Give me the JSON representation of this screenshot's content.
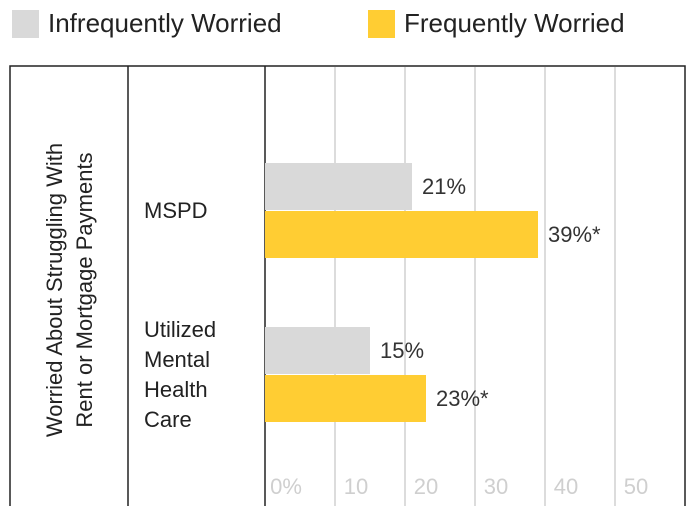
{
  "chart_data": {
    "type": "bar",
    "orientation": "horizontal",
    "y_label": "Worried About Struggling With Rent or Mortgage Payments",
    "categories": [
      "MSPD",
      "Utilized Mental Health Care"
    ],
    "series": [
      {
        "name": "Infrequently Worried",
        "color": "#d9d9d9",
        "values": [
          21,
          15
        ],
        "value_labels": [
          "21%",
          "15%"
        ]
      },
      {
        "name": "Frequently Worried",
        "color": "#ffcd33",
        "values": [
          39,
          23
        ],
        "value_labels": [
          "39%*",
          "23%*"
        ]
      }
    ],
    "xlim": [
      0,
      60
    ],
    "xticks": [
      {
        "value": 0,
        "label": "0%"
      },
      10,
      20,
      30,
      40,
      50
    ],
    "grid": true
  }
}
